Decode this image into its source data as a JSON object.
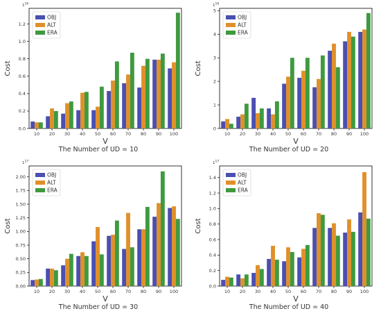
{
  "colors": {
    "OBJ": "#4b4fb0",
    "ALT": "#e0902a",
    "ERA": "#3f9a3f"
  },
  "legend": [
    "OBJ",
    "ALT",
    "ERA"
  ],
  "chart_data": [
    {
      "type": "bar",
      "caption": "The Number of UD = 10",
      "xlabel": "V",
      "ylabel": "Cost",
      "multiplier": "1e16",
      "categories": [
        "10",
        "20",
        "30",
        "40",
        "50",
        "60",
        "70",
        "80",
        "90",
        "100"
      ],
      "yticks": [
        0.0,
        0.2,
        0.4,
        0.6,
        0.8,
        1.0,
        1.2
      ],
      "ytick_labels": [
        "0.0",
        "0.2",
        "0.4",
        "0.6",
        "0.8",
        "1.0",
        "1.2"
      ],
      "ylim": [
        0,
        1.38
      ],
      "legend_position": "top-left",
      "series": [
        {
          "name": "OBJ",
          "values": [
            0.08,
            0.14,
            0.17,
            0.21,
            0.21,
            0.43,
            0.52,
            0.47,
            0.79,
            0.69
          ]
        },
        {
          "name": "ALT",
          "values": [
            0.07,
            0.23,
            0.29,
            0.41,
            0.25,
            0.55,
            0.62,
            0.72,
            0.79,
            0.76
          ]
        },
        {
          "name": "ERA",
          "values": [
            0.07,
            0.2,
            0.31,
            0.42,
            0.48,
            0.77,
            0.87,
            0.8,
            0.86,
            1.33
          ]
        }
      ]
    },
    {
      "type": "bar",
      "caption": "The Number of UD = 20",
      "xlabel": "V",
      "ylabel": "Cost",
      "multiplier": "1e16",
      "categories": [
        "10",
        "20",
        "30",
        "40",
        "50",
        "60",
        "70",
        "80",
        "90",
        "100"
      ],
      "yticks": [
        0,
        1,
        2,
        3,
        4,
        5
      ],
      "ytick_labels": [
        "0",
        "1",
        "2",
        "3",
        "4",
        "5"
      ],
      "ylim": [
        0,
        5.1
      ],
      "legend_position": "top-left",
      "series": [
        {
          "name": "OBJ",
          "values": [
            0.3,
            0.5,
            1.3,
            0.85,
            1.9,
            2.15,
            1.75,
            3.3,
            3.7,
            4.1
          ]
        },
        {
          "name": "ALT",
          "values": [
            0.4,
            0.6,
            0.65,
            0.6,
            2.2,
            2.45,
            2.1,
            3.6,
            4.1,
            4.2
          ]
        },
        {
          "name": "ERA",
          "values": [
            0.2,
            1.05,
            0.85,
            1.15,
            3.0,
            3.0,
            3.1,
            2.6,
            3.9,
            4.9
          ]
        }
      ]
    },
    {
      "type": "bar",
      "caption": "The Number of UD = 30",
      "xlabel": "V",
      "ylabel": "Cost",
      "multiplier": "1e17",
      "categories": [
        "10",
        "20",
        "30",
        "40",
        "50",
        "60",
        "70",
        "80",
        "90",
        "100"
      ],
      "yticks": [
        0.0,
        0.25,
        0.5,
        0.75,
        1.0,
        1.25,
        1.5,
        1.75,
        2.0
      ],
      "ytick_labels": [
        "0.00",
        "0.25",
        "0.50",
        "0.75",
        "1.00",
        "1.25",
        "1.50",
        "1.75",
        "2.00"
      ],
      "ylim": [
        0,
        2.2
      ],
      "legend_position": "top-left",
      "series": [
        {
          "name": "OBJ",
          "values": [
            0.11,
            0.32,
            0.38,
            0.55,
            0.82,
            0.92,
            0.68,
            1.04,
            1.27,
            1.43
          ]
        },
        {
          "name": "ALT",
          "values": [
            0.12,
            0.32,
            0.5,
            0.62,
            1.08,
            0.94,
            1.34,
            1.04,
            1.52,
            1.46
          ]
        },
        {
          "name": "ERA",
          "values": [
            0.13,
            0.29,
            0.59,
            0.55,
            0.58,
            1.2,
            0.71,
            1.45,
            2.1,
            1.23
          ]
        }
      ]
    },
    {
      "type": "bar",
      "caption": "The Number of UD = 40",
      "xlabel": "V",
      "ylabel": "Cost",
      "multiplier": "1e17",
      "categories": [
        "10",
        "20",
        "30",
        "40",
        "50",
        "60",
        "70",
        "80",
        "90",
        "100"
      ],
      "yticks": [
        0.0,
        0.2,
        0.4,
        0.6,
        0.8,
        1.0,
        1.2,
        1.4
      ],
      "ytick_labels": [
        "0.0",
        "0.2",
        "0.4",
        "0.6",
        "0.8",
        "1.0",
        "1.2",
        "1.4"
      ],
      "ylim": [
        0,
        1.55
      ],
      "legend_position": "top-left",
      "series": [
        {
          "name": "OBJ",
          "values": [
            0.08,
            0.15,
            0.17,
            0.35,
            0.32,
            0.37,
            0.75,
            0.75,
            0.69,
            0.95
          ]
        },
        {
          "name": "ALT",
          "values": [
            0.12,
            0.1,
            0.27,
            0.52,
            0.5,
            0.48,
            0.94,
            0.81,
            0.86,
            1.47
          ]
        },
        {
          "name": "ERA",
          "values": [
            0.11,
            0.15,
            0.22,
            0.34,
            0.44,
            0.53,
            0.92,
            0.65,
            0.7,
            0.87
          ]
        }
      ]
    }
  ]
}
